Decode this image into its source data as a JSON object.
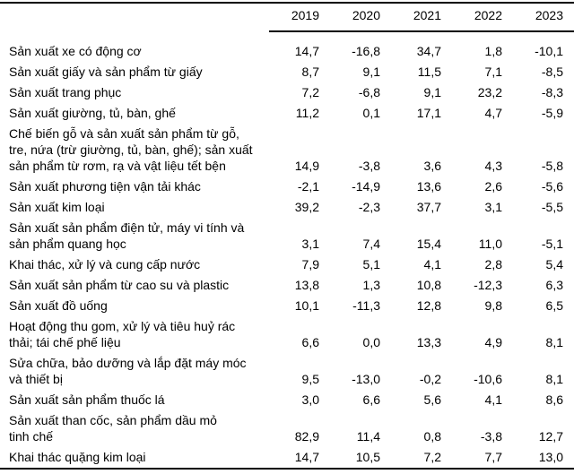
{
  "chart_data": {
    "type": "table",
    "title": "",
    "columns": [
      "2019",
      "2020",
      "2021",
      "2022",
      "2023"
    ],
    "rows": [
      {
        "label": "Sản xuất xe có động cơ",
        "values": [
          "14,7",
          "-16,8",
          "34,7",
          "1,8",
          "-10,1"
        ]
      },
      {
        "label": "Sản xuất giấy và sản phẩm từ giấy",
        "values": [
          "8,7",
          "9,1",
          "11,5",
          "7,1",
          "-8,5"
        ]
      },
      {
        "label": "Sản xuất trang phục",
        "values": [
          "7,2",
          "-6,8",
          "9,1",
          "23,2",
          "-8,3"
        ]
      },
      {
        "label": "Sản xuất giường, tủ, bàn, ghế",
        "values": [
          "11,2",
          "0,1",
          "17,1",
          "4,7",
          "-5,9"
        ]
      },
      {
        "label": "Chế biến gỗ và sản xuất sản phẩm từ gỗ,\ntre, nứa (trừ giường, tủ, bàn, ghế); sản xuất\nsản phẩm từ rơm, rạ và vật liệu tết bện",
        "values": [
          "14,9",
          "-3,8",
          "3,6",
          "4,3",
          "-5,8"
        ]
      },
      {
        "label": "Sản xuất phương tiện vận tải khác",
        "values": [
          "-2,1",
          "-14,9",
          "13,6",
          "2,6",
          "-5,6"
        ]
      },
      {
        "label": "Sản xuất kim loại",
        "values": [
          "39,2",
          "-2,3",
          "37,7",
          "3,1",
          "-5,5"
        ]
      },
      {
        "label": "Sản xuất sản phẩm điện tử, máy vi tính và\nsản phẩm quang học",
        "values": [
          "3,1",
          "7,4",
          "15,4",
          "11,0",
          "-5,1"
        ]
      },
      {
        "label": "Khai thác, xử lý và cung cấp nước",
        "values": [
          "7,9",
          "5,1",
          "4,1",
          "2,8",
          "5,4"
        ]
      },
      {
        "label": "Sản xuất sản phẩm từ cao su và plastic",
        "values": [
          "13,8",
          "1,3",
          "10,8",
          "-12,3",
          "6,3"
        ]
      },
      {
        "label": "Sản xuất đồ uống",
        "values": [
          "10,1",
          "-11,3",
          "12,8",
          "9,8",
          "6,5"
        ]
      },
      {
        "label": "Hoạt động thu gom, xử lý và tiêu huỷ rác\nthải; tái chế phế liệu",
        "values": [
          "6,6",
          "0,0",
          "13,3",
          "4,9",
          "8,1"
        ]
      },
      {
        "label": "Sửa chữa, bảo dưỡng và lắp đặt máy móc\nvà thiết bị",
        "values": [
          "9,5",
          "-13,0",
          "-0,2",
          "-10,6",
          "8,1"
        ]
      },
      {
        "label": "Sản xuất sản phẩm thuốc lá",
        "values": [
          "3,0",
          "6,6",
          "5,6",
          "4,1",
          "8,6"
        ]
      },
      {
        "label": "Sản xuất than cốc, sản phẩm dầu mỏ\ntinh chế",
        "values": [
          "82,9",
          "11,4",
          "0,8",
          "-3,8",
          "12,7"
        ]
      },
      {
        "label": "Khai thác quặng kim loại",
        "values": [
          "14,7",
          "10,5",
          "7,2",
          "7,7",
          "13,0"
        ]
      }
    ],
    "layout": {
      "header_underline_spans_year_columns_only": true,
      "value_alignment": "right",
      "decimal_separator": ",",
      "text_color": "#000000",
      "rule_color": "#000000",
      "background": "#ffffff"
    }
  }
}
